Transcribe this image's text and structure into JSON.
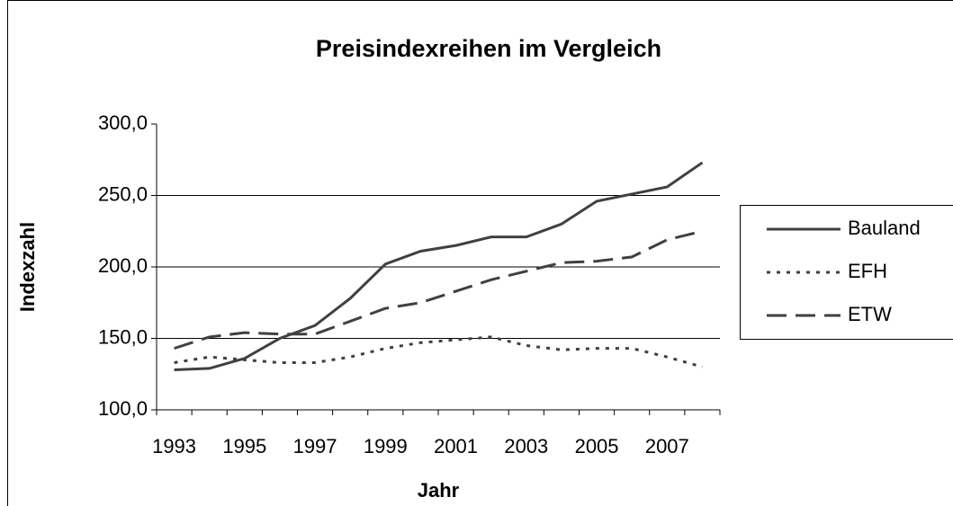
{
  "chart_data": {
    "type": "line",
    "title": "Preisindexreihen im Vergleich",
    "x_label": "Jahr",
    "y_label": "Indexzahl",
    "categories": [
      "1993",
      null,
      "1995",
      null,
      "1997",
      null,
      "1999",
      null,
      "2001",
      null,
      "2003",
      null,
      "2005",
      null,
      "2007",
      null
    ],
    "series": [
      {
        "name": "Bauland",
        "color": "#404040",
        "dash": "solid",
        "values": [
          128,
          129,
          136,
          150,
          159,
          178,
          202,
          211,
          215,
          221,
          221,
          230,
          246,
          251,
          256,
          273
        ]
      },
      {
        "name": "EFH",
        "color": "#404040",
        "dash": "dotted",
        "values": [
          133,
          137,
          135,
          133,
          133,
          137,
          143,
          147,
          149,
          151,
          145,
          142,
          143,
          143,
          137,
          130
        ]
      },
      {
        "name": "ETW",
        "color": "#404040",
        "dash": "dashed",
        "values": [
          143,
          151,
          154,
          153,
          153,
          162,
          171,
          175,
          183,
          191,
          197,
          203,
          204,
          207,
          219,
          225
        ]
      }
    ],
    "ylim": [
      100,
      300
    ],
    "yticks": [
      {
        "value": 100,
        "label": "100,0"
      },
      {
        "value": 150,
        "label": "150,0"
      },
      {
        "value": 200,
        "label": "200,0"
      },
      {
        "value": 250,
        "label": "250,0"
      },
      {
        "value": 300,
        "label": "300,0"
      }
    ],
    "grid": true,
    "legend": "right"
  }
}
